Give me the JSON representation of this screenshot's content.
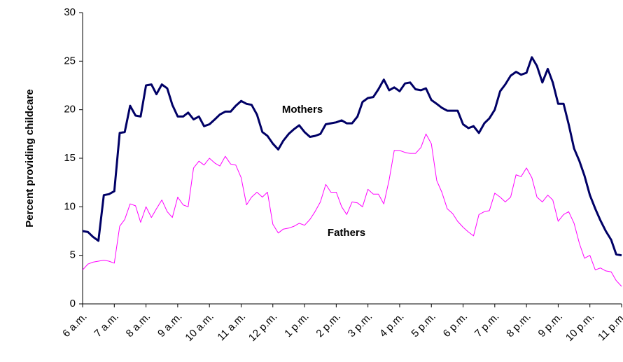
{
  "chart_data": {
    "type": "line",
    "ylabel": "Percent providing childcare",
    "xlim": [
      6,
      23
    ],
    "ylim": [
      0,
      30
    ],
    "yticks": [
      0,
      5,
      10,
      15,
      20,
      25,
      30
    ],
    "xticks": [
      {
        "value": 6,
        "label": "6 a.m."
      },
      {
        "value": 7,
        "label": "7 a.m."
      },
      {
        "value": 8,
        "label": "8 a.m."
      },
      {
        "value": 9,
        "label": "9 a.m."
      },
      {
        "value": 10,
        "label": "10 a.m."
      },
      {
        "value": 11,
        "label": "11 a.m."
      },
      {
        "value": 12,
        "label": "12 p.m."
      },
      {
        "value": 13,
        "label": "1 p.m."
      },
      {
        "value": 14,
        "label": "2 p.m."
      },
      {
        "value": 15,
        "label": "3 p.m."
      },
      {
        "value": 16,
        "label": "4 p.m."
      },
      {
        "value": 17,
        "label": "5 p.m."
      },
      {
        "value": 18,
        "label": "6 p.m."
      },
      {
        "value": 19,
        "label": "7 p.m."
      },
      {
        "value": 20,
        "label": "8 p.m."
      },
      {
        "value": 21,
        "label": "9 p.m."
      },
      {
        "value": 22,
        "label": "10 p.m."
      },
      {
        "value": 23,
        "label": "11 p.m."
      }
    ],
    "grid": false,
    "x": [
      6,
      6.17,
      6.33,
      6.5,
      6.67,
      6.83,
      7,
      7.17,
      7.33,
      7.5,
      7.67,
      7.83,
      8,
      8.17,
      8.33,
      8.5,
      8.67,
      8.83,
      9,
      9.17,
      9.33,
      9.5,
      9.67,
      9.83,
      10,
      10.17,
      10.33,
      10.5,
      10.67,
      10.83,
      11,
      11.17,
      11.33,
      11.5,
      11.67,
      11.83,
      12,
      12.17,
      12.33,
      12.5,
      12.67,
      12.83,
      13,
      13.17,
      13.33,
      13.5,
      13.67,
      13.83,
      14,
      14.17,
      14.33,
      14.5,
      14.67,
      14.83,
      15,
      15.17,
      15.33,
      15.5,
      15.67,
      15.83,
      16,
      16.17,
      16.33,
      16.5,
      16.67,
      16.83,
      17,
      17.17,
      17.33,
      17.5,
      17.67,
      17.83,
      18,
      18.17,
      18.33,
      18.5,
      18.67,
      18.83,
      19,
      19.17,
      19.33,
      19.5,
      19.67,
      19.83,
      20,
      20.17,
      20.33,
      20.5,
      20.67,
      20.83,
      21,
      21.17,
      21.33,
      21.5,
      21.67,
      21.83,
      22,
      22.17,
      22.33,
      22.5,
      22.67,
      22.83,
      23
    ],
    "series": [
      {
        "name": "Mothers",
        "color": "#000066",
        "values": [
          7.5,
          7.4,
          6.9,
          6.5,
          11.2,
          11.3,
          11.6,
          17.6,
          17.7,
          20.4,
          19.4,
          19.3,
          22.5,
          22.6,
          21.6,
          22.6,
          22.2,
          20.5,
          19.3,
          19.3,
          19.7,
          19.0,
          19.3,
          18.3,
          18.5,
          19.0,
          19.5,
          19.8,
          19.8,
          20.4,
          20.9,
          20.6,
          20.5,
          19.5,
          17.7,
          17.3,
          16.5,
          15.9,
          16.8,
          17.5,
          18.0,
          18.4,
          17.7,
          17.2,
          17.3,
          17.5,
          18.5,
          18.6,
          18.7,
          18.9,
          18.6,
          18.6,
          19.3,
          20.8,
          21.2,
          21.3,
          22.1,
          23.1,
          22.0,
          22.3,
          21.9,
          22.7,
          22.8,
          22.1,
          22.0,
          22.2,
          21.0,
          20.6,
          20.2,
          19.9,
          19.9,
          19.9,
          18.5,
          18.1,
          18.3,
          17.6,
          18.6,
          19.1,
          20.0,
          21.9,
          22.6,
          23.5,
          23.9,
          23.6,
          23.8,
          25.4,
          24.5,
          22.8,
          24.2,
          22.8,
          20.6,
          20.6,
          18.5,
          16.0,
          14.7,
          13.2,
          11.2,
          9.8,
          8.6,
          7.5,
          6.6,
          5.1,
          5.0
        ]
      },
      {
        "name": "Fathers",
        "color": "#ff00ff",
        "values": [
          3.5,
          4.1,
          4.3,
          4.4,
          4.5,
          4.4,
          4.2,
          8.0,
          8.7,
          10.3,
          10.1,
          8.4,
          10.0,
          8.9,
          9.8,
          10.7,
          9.5,
          8.9,
          11.0,
          10.2,
          10.0,
          14.0,
          14.7,
          14.3,
          15.0,
          14.5,
          14.2,
          15.2,
          14.4,
          14.3,
          13.0,
          10.2,
          11.0,
          11.5,
          11.0,
          11.5,
          8.2,
          7.3,
          7.7,
          7.8,
          8.0,
          8.3,
          8.1,
          8.7,
          9.5,
          10.5,
          12.3,
          11.5,
          11.5,
          10.0,
          9.2,
          10.5,
          10.4,
          10.0,
          11.8,
          11.3,
          11.3,
          10.3,
          12.8,
          15.8,
          15.8,
          15.6,
          15.5,
          15.5,
          16.1,
          17.5,
          16.5,
          12.7,
          11.5,
          9.8,
          9.3,
          8.5,
          7.9,
          7.4,
          7.0,
          9.2,
          9.5,
          9.6,
          11.4,
          11.0,
          10.5,
          11.0,
          13.3,
          13.1,
          14.0,
          13.0,
          11.0,
          10.5,
          11.2,
          10.7,
          8.5,
          9.2,
          9.5,
          8.3,
          6.2,
          4.7,
          5.0,
          3.5,
          3.7,
          3.4,
          3.3,
          2.4,
          1.8
        ]
      }
    ]
  }
}
